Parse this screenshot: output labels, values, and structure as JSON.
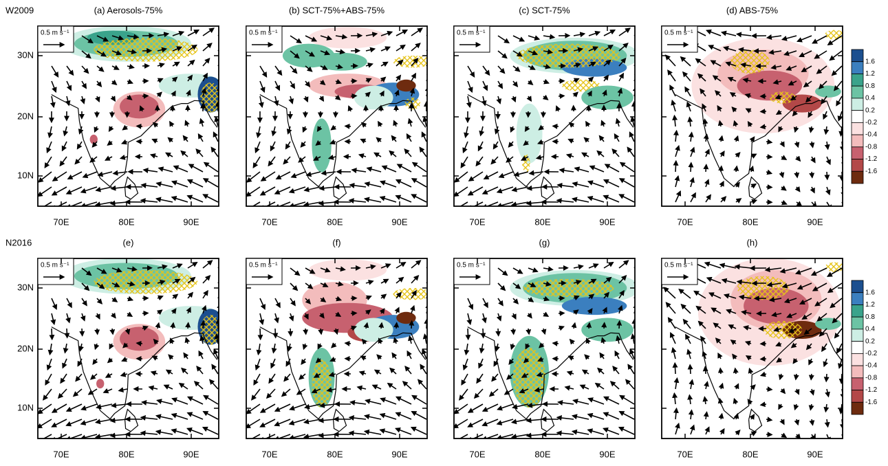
{
  "rows": [
    {
      "label": "W2009",
      "panels": [
        "(a) Aerosols-75%",
        "(b) SCT-75%+ABS-75%",
        "(c) SCT-75%",
        "(d) ABS-75%"
      ]
    },
    {
      "label": "N2016",
      "panels": [
        "(e)",
        "(f)",
        "(g)",
        "(h)"
      ]
    }
  ],
  "reference_vector": "0.5 m s⁻¹",
  "lon_labels": [
    "70E",
    "80E",
    "90E"
  ],
  "lat_labels": [
    "30N",
    "20N",
    "10N"
  ],
  "colorbar": {
    "labels": [
      "1.6",
      "1.2",
      "0.8",
      "0.4",
      "0.2",
      "-0.2",
      "-0.4",
      "-0.8",
      "-1.2",
      "-1.6"
    ],
    "colors": [
      "#1c4f8f",
      "#3b7fbf",
      "#3aa38b",
      "#6cc3a4",
      "#cdeee4",
      "#ffffff",
      "#fbe1e1",
      "#f3bcbc",
      "#c7616f",
      "#b34848",
      "#6e2b0f"
    ]
  }
}
